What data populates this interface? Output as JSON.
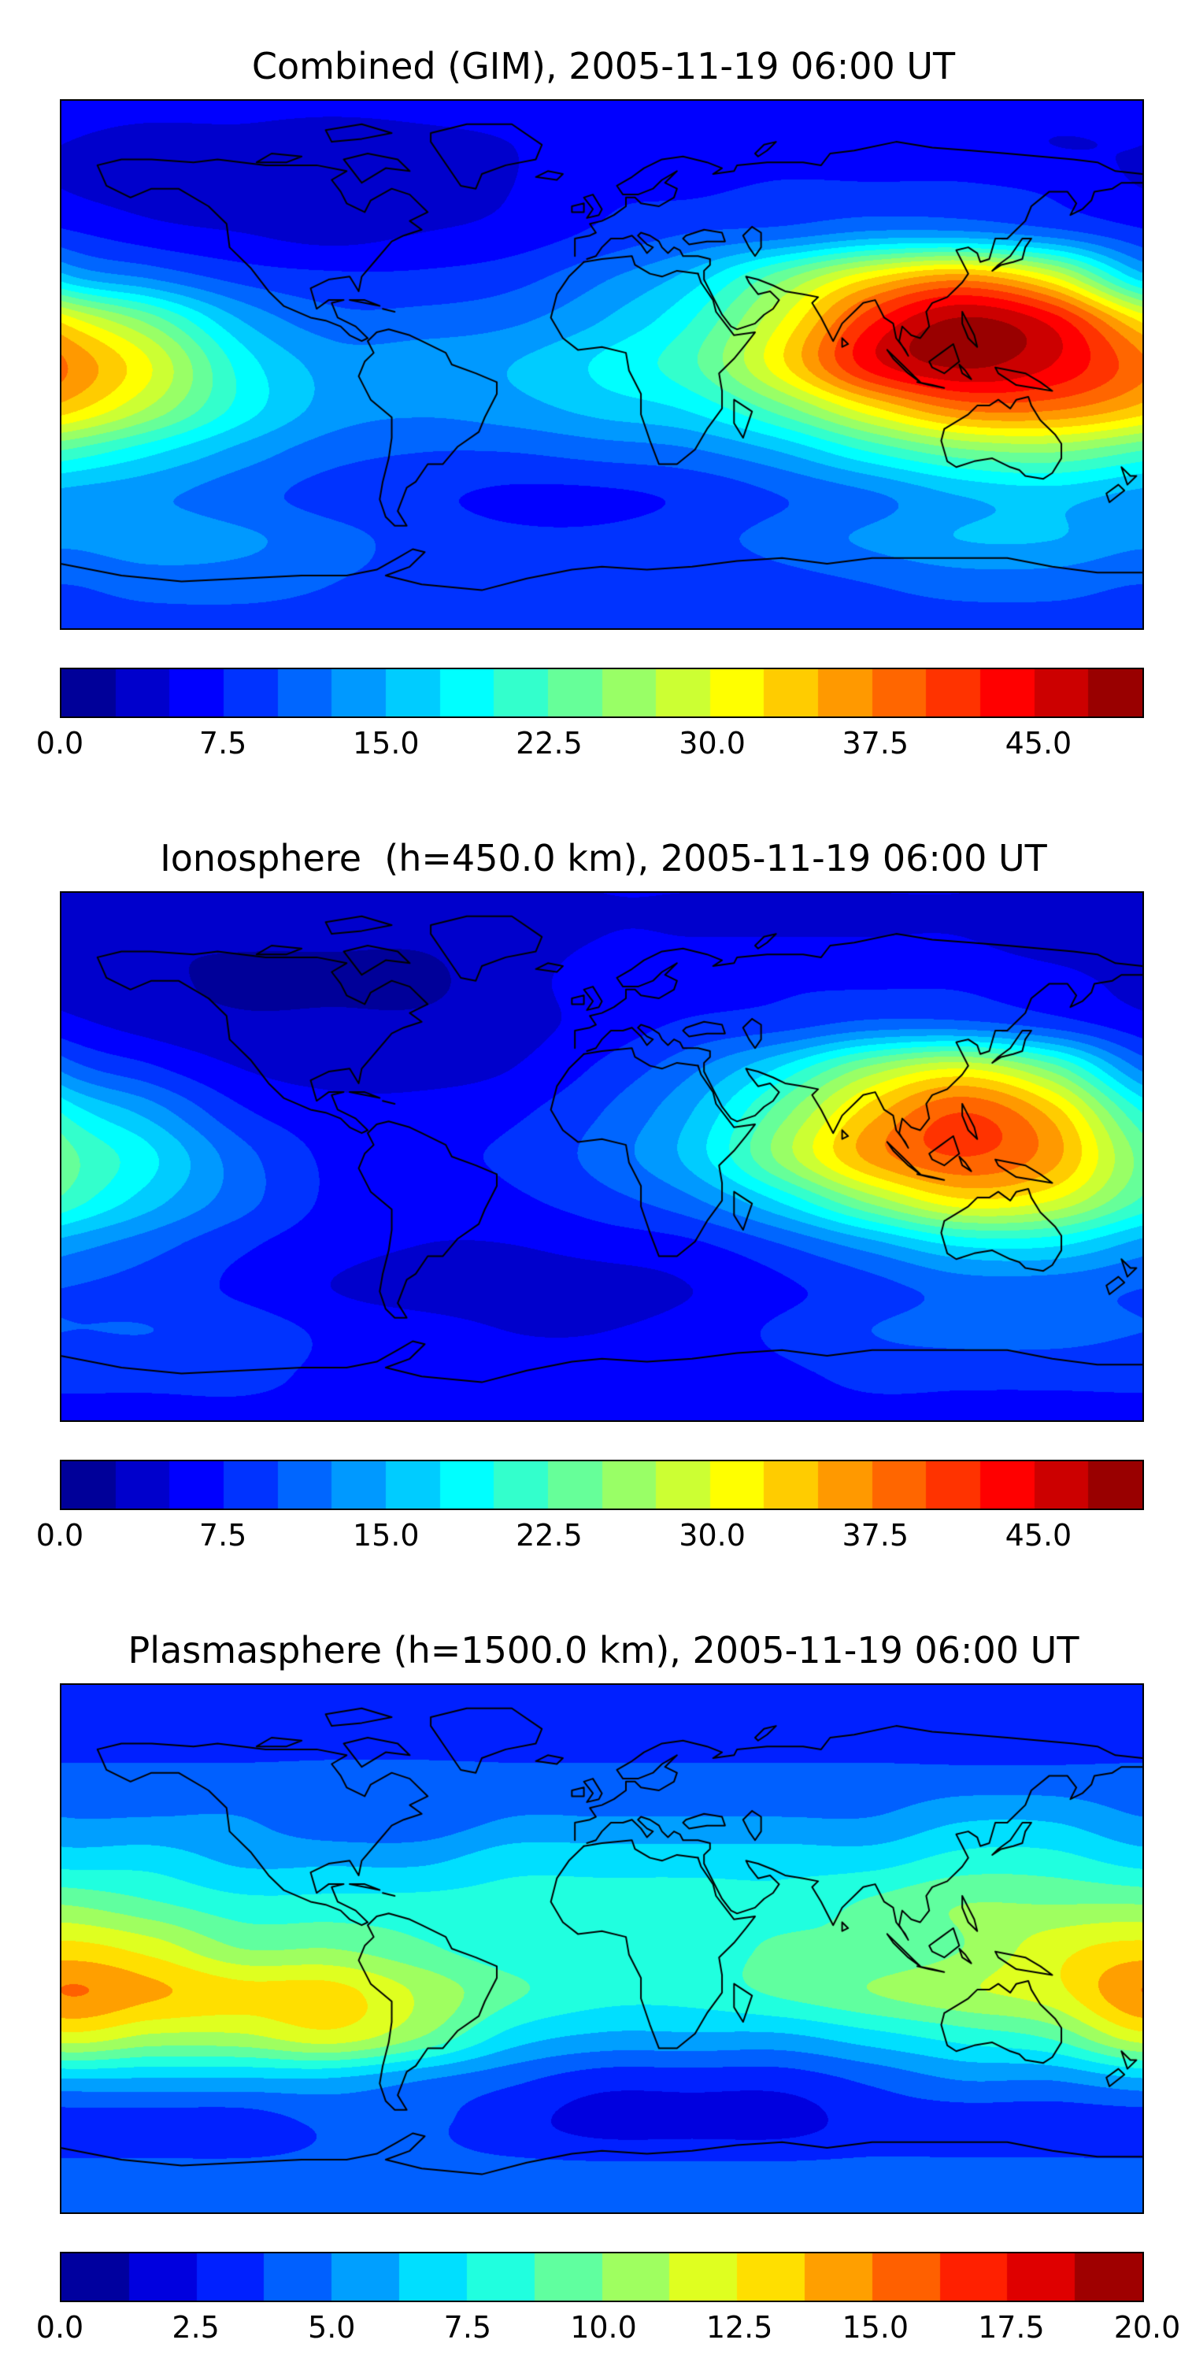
{
  "figure": {
    "background": "#ffffff",
    "colormap": "jet",
    "map_border_color": "#000000",
    "coastline_color": "#000000"
  },
  "chart_data": [
    {
      "type": "heatmap",
      "title": "Combined (GIM), 2005-11-19 06:00 UT",
      "projection": "equirectangular",
      "colormap": "jet",
      "vmin": 0,
      "vmax": 50,
      "level_step": 2.5,
      "colorbar_ticks": [
        0,
        7.5,
        15,
        22.5,
        30,
        37.5,
        45
      ],
      "lon": [
        -180,
        -150,
        -120,
        -90,
        -60,
        -30,
        0,
        30,
        60,
        90,
        120,
        150,
        180
      ],
      "lat": [
        90,
        75,
        60,
        45,
        30,
        15,
        0,
        -15,
        -30,
        -45,
        -60,
        -75,
        -90
      ],
      "values": [
        [
          6,
          6,
          6,
          6,
          6,
          6,
          6,
          6,
          6,
          6,
          6,
          6,
          6
        ],
        [
          5,
          4,
          4,
          3,
          4,
          5,
          6,
          6,
          6,
          6,
          6,
          5,
          5
        ],
        [
          5,
          4,
          3,
          3,
          3,
          5,
          7,
          7,
          8,
          8,
          8,
          7,
          5
        ],
        [
          8,
          6,
          5,
          4,
          5,
          6,
          8,
          10,
          11,
          13,
          13,
          11,
          8
        ],
        [
          16,
          12,
          9,
          8,
          8,
          9,
          12,
          16,
          24,
          32,
          36,
          30,
          16
        ],
        [
          32,
          24,
          15,
          11,
          11,
          12,
          15,
          20,
          30,
          42,
          48,
          44,
          32
        ],
        [
          38,
          30,
          19,
          14,
          14,
          15,
          18,
          22,
          32,
          44,
          48,
          45,
          38
        ],
        [
          34,
          27,
          19,
          14,
          13,
          14,
          16,
          18,
          24,
          32,
          38,
          38,
          34
        ],
        [
          22,
          18,
          14,
          11,
          10,
          10,
          11,
          12,
          15,
          20,
          24,
          25,
          22
        ],
        [
          14,
          13,
          11,
          9,
          8,
          7,
          7,
          8,
          10,
          12,
          15,
          16,
          14
        ],
        [
          13,
          14,
          13,
          11,
          9,
          8,
          8,
          9,
          11,
          13,
          15,
          15,
          13
        ],
        [
          10,
          11,
          11,
          10,
          9,
          8,
          8,
          8,
          9,
          10,
          11,
          11,
          10
        ],
        [
          9,
          9,
          9,
          9,
          9,
          9,
          9,
          9,
          9,
          9,
          9,
          9,
          9
        ]
      ]
    },
    {
      "type": "heatmap",
      "title": "Ionosphere  (h=450.0 km), 2005-11-19 06:00 UT",
      "projection": "equirectangular",
      "colormap": "jet",
      "vmin": 0,
      "vmax": 50,
      "level_step": 2.5,
      "colorbar_ticks": [
        0,
        7.5,
        15,
        22.5,
        30,
        37.5,
        45
      ],
      "lon": [
        -180,
        -150,
        -120,
        -90,
        -60,
        -30,
        0,
        30,
        60,
        90,
        120,
        150,
        180
      ],
      "lat": [
        90,
        75,
        60,
        45,
        30,
        15,
        0,
        -15,
        -30,
        -45,
        -60,
        -75,
        -90
      ],
      "values": [
        [
          5,
          5,
          5,
          5,
          5,
          5,
          5,
          5,
          5,
          5,
          5,
          5,
          5
        ],
        [
          4,
          3,
          3,
          3,
          3,
          4,
          5,
          5,
          5,
          5,
          5,
          4,
          4
        ],
        [
          4,
          3,
          2,
          2,
          2,
          4,
          6,
          6,
          7,
          7,
          7,
          6,
          4
        ],
        [
          6,
          4,
          3,
          3,
          3,
          4,
          6,
          8,
          9,
          11,
          11,
          9,
          6
        ],
        [
          12,
          8,
          5,
          4,
          4,
          5,
          8,
          12,
          18,
          26,
          30,
          24,
          12
        ],
        [
          20,
          14,
          8,
          6,
          6,
          7,
          10,
          15,
          24,
          34,
          40,
          34,
          20
        ],
        [
          24,
          18,
          11,
          7,
          7,
          8,
          11,
          16,
          26,
          36,
          40,
          36,
          24
        ],
        [
          22,
          16,
          11,
          7,
          6,
          7,
          9,
          12,
          18,
          26,
          32,
          30,
          22
        ],
        [
          14,
          11,
          8,
          6,
          5,
          5,
          6,
          7,
          10,
          14,
          18,
          18,
          14
        ],
        [
          10,
          9,
          7,
          5,
          4,
          4,
          4,
          5,
          7,
          9,
          11,
          11,
          10
        ],
        [
          10,
          10,
          9,
          7,
          6,
          5,
          5,
          6,
          8,
          10,
          11,
          11,
          10
        ],
        [
          8,
          8,
          8,
          7,
          6,
          6,
          6,
          6,
          7,
          8,
          8,
          8,
          8
        ],
        [
          7,
          7,
          7,
          7,
          7,
          7,
          7,
          7,
          7,
          7,
          7,
          7,
          7
        ]
      ]
    },
    {
      "type": "heatmap",
      "title": "Plasmasphere (h=1500.0 km), 2005-11-19 06:00 UT",
      "projection": "equirectangular",
      "colormap": "jet",
      "vmin": 0,
      "vmax": 20,
      "level_step": 1.25,
      "colorbar_ticks": [
        0,
        2.5,
        5,
        7.5,
        10,
        12.5,
        15,
        17.5,
        20
      ],
      "lon": [
        -180,
        -150,
        -120,
        -90,
        -60,
        -30,
        0,
        30,
        60,
        90,
        120,
        150,
        180
      ],
      "lat": [
        90,
        75,
        60,
        45,
        30,
        15,
        0,
        -15,
        -30,
        -45,
        -60,
        -75,
        -90
      ],
      "values": [
        [
          3,
          3,
          3,
          3,
          3,
          3,
          3,
          3,
          3,
          3,
          3,
          3,
          3
        ],
        [
          3,
          3,
          3,
          3,
          3,
          3,
          3,
          3,
          3,
          3,
          3,
          3,
          3
        ],
        [
          4,
          4,
          4,
          4,
          4,
          4,
          4,
          4,
          4,
          4,
          4,
          4,
          4
        ],
        [
          5,
          5,
          5,
          4,
          4,
          5,
          5,
          5,
          5,
          5,
          6,
          6,
          5
        ],
        [
          7,
          7,
          6,
          6,
          6,
          7,
          7,
          7,
          7,
          7,
          8,
          8,
          7
        ],
        [
          10,
          9,
          8,
          8,
          8,
          8,
          8,
          8,
          8,
          9,
          10,
          10,
          10
        ],
        [
          13,
          12,
          10,
          10,
          9,
          8,
          8,
          8,
          9,
          9,
          10,
          12,
          13
        ],
        [
          15,
          14,
          13,
          13,
          11,
          9,
          8,
          8,
          9,
          10,
          11,
          12,
          15
        ],
        [
          12,
          11,
          11,
          12,
          10,
          7,
          6,
          6,
          6,
          7,
          8,
          9,
          12
        ],
        [
          6,
          6,
          6,
          6,
          5,
          4,
          3,
          3,
          3,
          4,
          5,
          5,
          6
        ],
        [
          3,
          3,
          3,
          4,
          4,
          3,
          2,
          2,
          2,
          3,
          3,
          3,
          3
        ],
        [
          4,
          4,
          4,
          4,
          4,
          4,
          4,
          4,
          4,
          4,
          4,
          4,
          4
        ],
        [
          4,
          4,
          4,
          4,
          4,
          4,
          4,
          4,
          4,
          4,
          4,
          4,
          4
        ]
      ]
    }
  ]
}
